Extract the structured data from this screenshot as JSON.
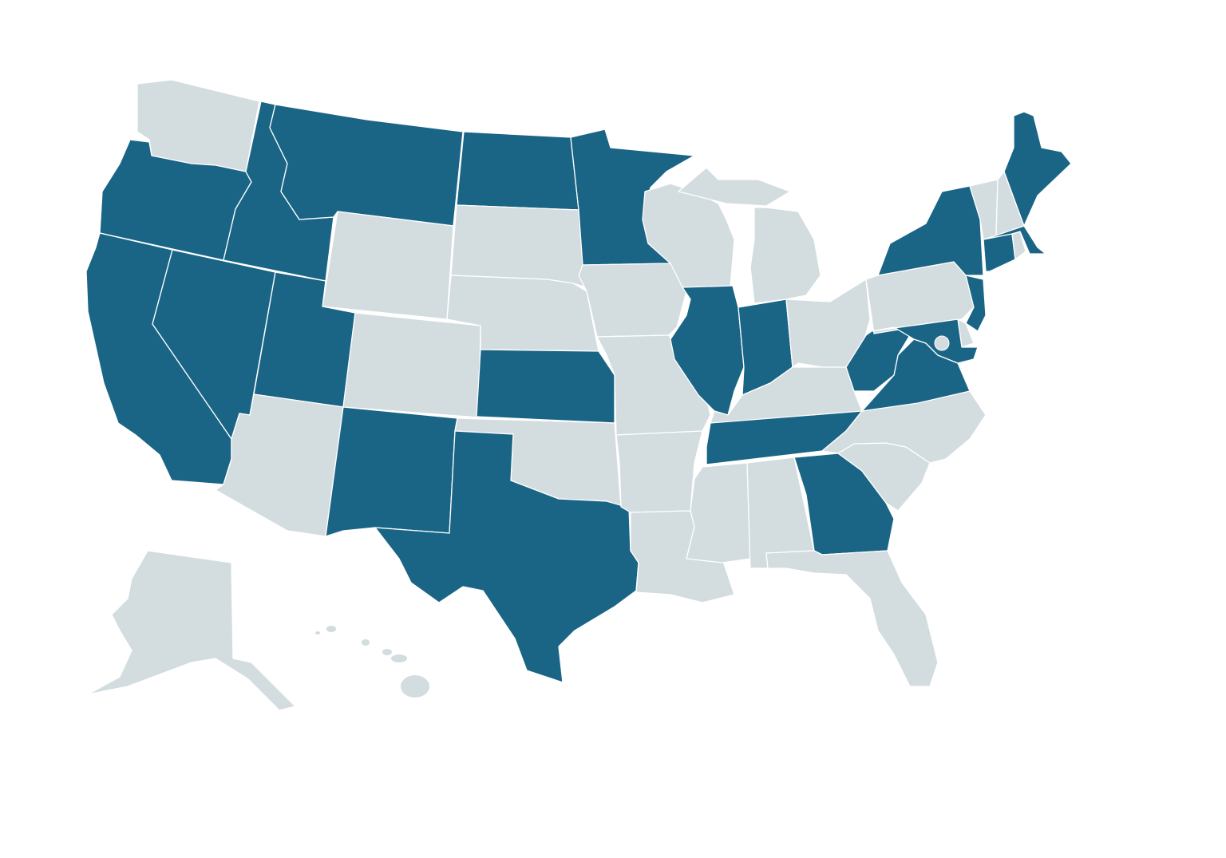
{
  "map": {
    "colors": {
      "highlighted": "#1a6585",
      "default": "#d3dcdf",
      "border": "#ffffff"
    },
    "states": {
      "WA": false,
      "OR": true,
      "CA": true,
      "ID": true,
      "NV": true,
      "MT": true,
      "WY": false,
      "UT": true,
      "AZ": false,
      "CO": false,
      "NM": true,
      "ND": true,
      "SD": false,
      "NE": false,
      "KS": true,
      "OK": false,
      "TX": true,
      "MN": true,
      "IA": false,
      "MO": false,
      "AR": false,
      "LA": false,
      "WI": false,
      "MI": false,
      "MI_UP": false,
      "IL": true,
      "IN": true,
      "OH": false,
      "KY": false,
      "TN": true,
      "MS": false,
      "AL": false,
      "GA": true,
      "FL": false,
      "SC": false,
      "NC": false,
      "VA": true,
      "WV": true,
      "PA": false,
      "NY": true,
      "NJ": true,
      "DE": false,
      "MD": true,
      "CT": true,
      "RI": false,
      "MA": true,
      "VT": false,
      "NH": false,
      "ME": true,
      "DC": false,
      "AK": false,
      "HI": false
    }
  }
}
